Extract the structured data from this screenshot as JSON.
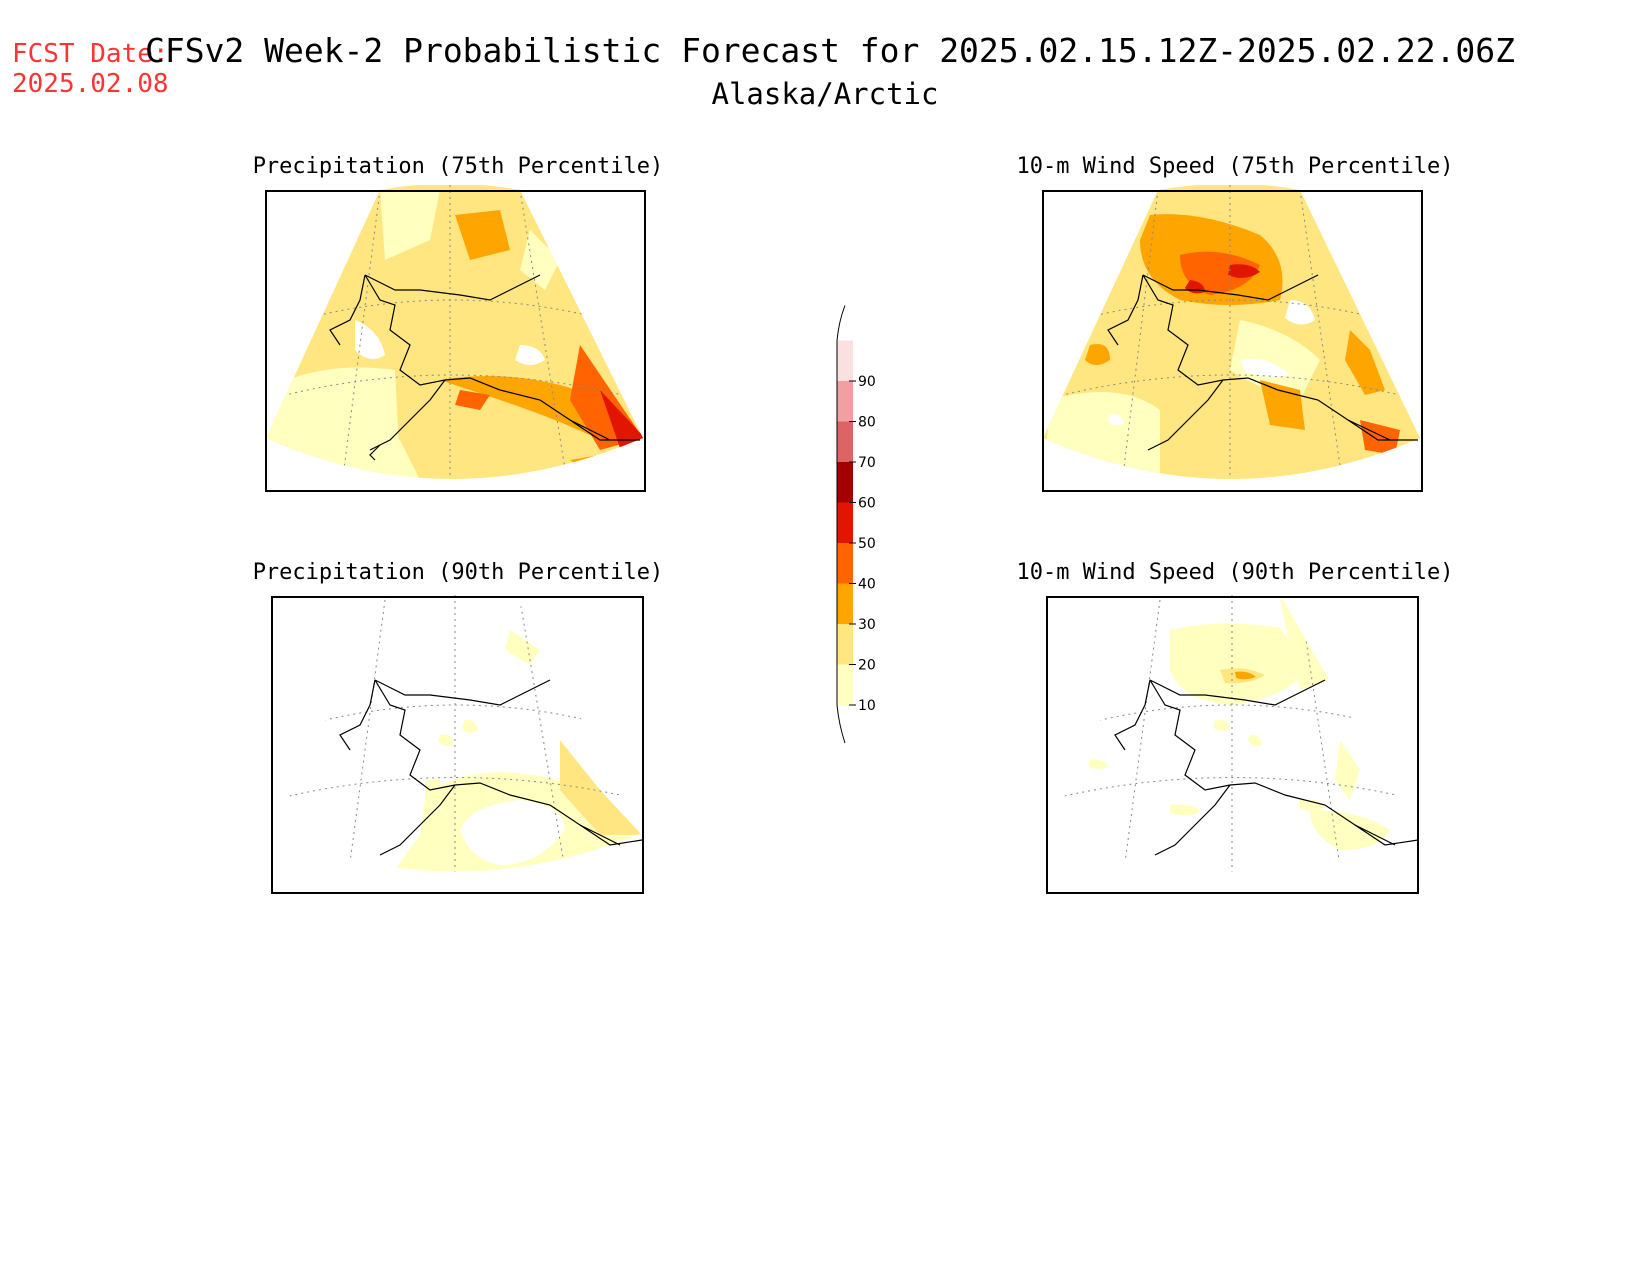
{
  "header": {
    "fcst_label": "FCST Date:",
    "fcst_date": "2025.02.08",
    "title": "CFSv2 Week-2 Probabilistic Forecast for 2025.02.15.12Z-2025.02.22.06Z",
    "subtitle": "Alaska/Arctic"
  },
  "panels": [
    {
      "id": "precip-75",
      "title": "Precipitation (75th Percentile)"
    },
    {
      "id": "wind-75",
      "title": "10-m Wind Speed (75th Percentile)"
    },
    {
      "id": "precip-90",
      "title": "Precipitation (90th Percentile)"
    },
    {
      "id": "wind-90",
      "title": "10-m Wind Speed (90th Percentile)"
    }
  ],
  "colorbar": {
    "levels": [
      "10",
      "20",
      "30",
      "40",
      "50",
      "60",
      "70",
      "80",
      "90"
    ],
    "colors": [
      "#ffffc0",
      "#ffe680",
      "#ffa500",
      "#ff6400",
      "#e11500",
      "#a50000",
      "#dc6464",
      "#f0a0a0",
      "#fbe0e0"
    ]
  }
}
